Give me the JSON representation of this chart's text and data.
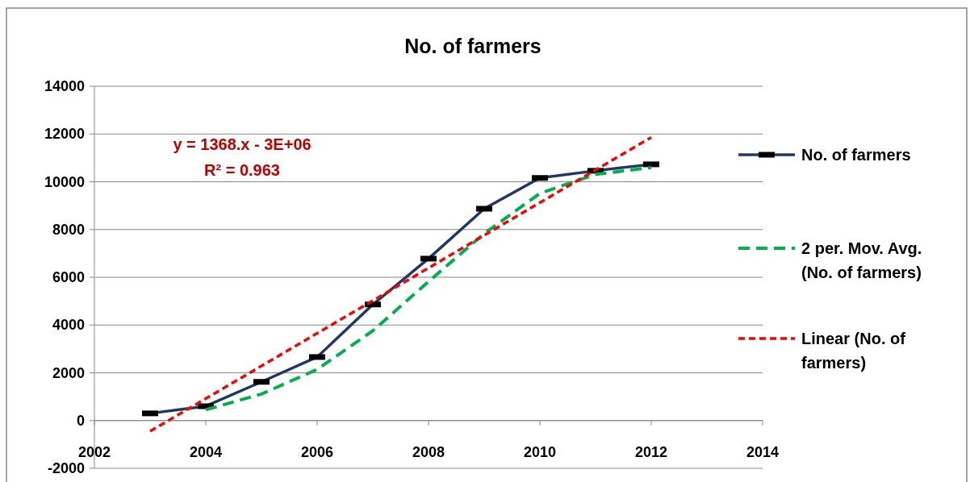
{
  "chart_data": {
    "type": "line",
    "title": "No. of farmers",
    "xlim": [
      2002,
      2014
    ],
    "xticks": [
      2002,
      2004,
      2006,
      2008,
      2010,
      2012,
      2014
    ],
    "ylim": [
      -2000,
      14000
    ],
    "yticks": [
      -2000,
      0,
      2000,
      4000,
      6000,
      8000,
      10000,
      12000,
      14000
    ],
    "grid": "y",
    "legend": "right",
    "annotations": [
      "y = 1368.x - 3E+06",
      "R² = 0.963"
    ],
    "series": [
      {
        "name": "No. of farmers",
        "color": "#1f3864",
        "x": [
          2003,
          2004,
          2005,
          2006,
          2007,
          2008,
          2009,
          2010,
          2011,
          2012
        ],
        "values": [
          300,
          600,
          1620,
          2660,
          4860,
          6780,
          8870,
          10160,
          10460,
          10730
        ],
        "marker": "square",
        "line_style": "solid"
      },
      {
        "name": "2 per. Mov. Avg. (No. of farmers)",
        "color": "#00b050",
        "x": [
          2004,
          2005,
          2006,
          2007,
          2008,
          2009,
          2010,
          2011,
          2012
        ],
        "values": [
          450,
          1110,
          2140,
          3760,
          5820,
          7830,
          9515,
          10310,
          10595
        ],
        "marker": "none",
        "line_style": "dashed"
      },
      {
        "name": "Linear (No. of farmers)",
        "color": "#ff0000",
        "x": [
          2003,
          2012
        ],
        "values": [
          -450,
          11860
        ],
        "marker": "none",
        "line_style": "dotted"
      }
    ]
  }
}
